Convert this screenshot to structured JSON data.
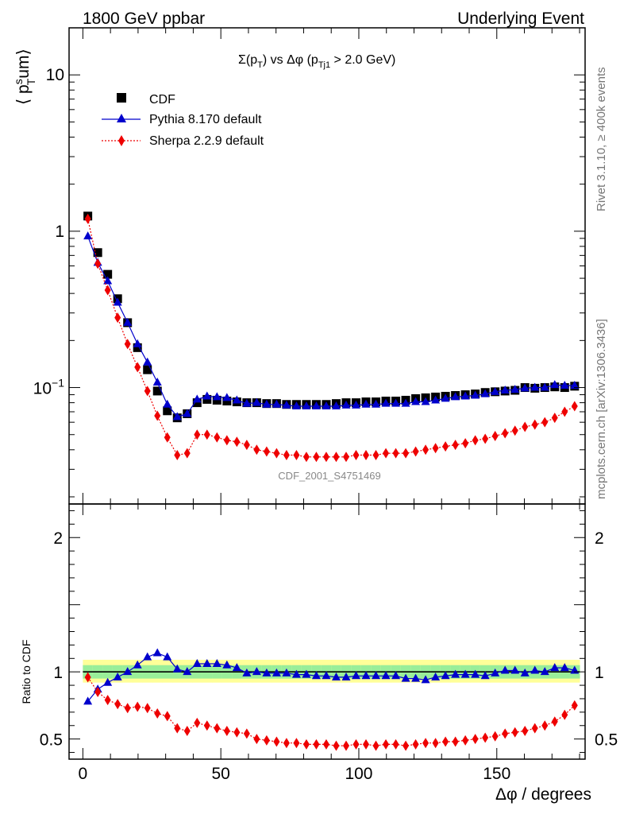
{
  "header": {
    "left_title": "1800 GeV ppbar",
    "right_title": "Underlying Event"
  },
  "plot_title": "Σ(p_T) vs Δφ (p_Tj1 > 2.0 GeV)",
  "watermark": "CDF_2001_S4751469",
  "side_labels": {
    "rivet": "Rivet 3.1.10, ≥ 400k events",
    "mcplots": "mcplots.cern.ch [arXiv:1306.3436]"
  },
  "colors": {
    "cdf": "#000000",
    "pythia": "#0000cc",
    "sherpa": "#ee0000",
    "band_inner": "#99ee99",
    "band_outer": "#ffff99"
  },
  "chart_data": [
    {
      "type": "line",
      "name": "main",
      "ylabel": "⟨ p_T^sum ⟩",
      "yscale": "log",
      "ylim": [
        0.018,
        20
      ],
      "xlim": [
        -5,
        182
      ],
      "yticks": [
        "10^-1",
        "1",
        "10"
      ],
      "legend_position": "top-left",
      "x": [
        1.8,
        5.4,
        9,
        12.6,
        16.2,
        19.8,
        23.4,
        27,
        30.6,
        34.2,
        37.8,
        41.4,
        45,
        48.6,
        52.2,
        55.8,
        59.4,
        63,
        66.6,
        70.2,
        73.8,
        77.4,
        81,
        84.6,
        88.2,
        91.8,
        95.4,
        99,
        102.6,
        106.2,
        109.8,
        113.4,
        117,
        120.6,
        124.2,
        127.8,
        131.4,
        135,
        138.6,
        142.2,
        145.8,
        149.4,
        153,
        156.6,
        160.2,
        163.8,
        167.4,
        171,
        174.6,
        178.2
      ],
      "series": [
        {
          "name": "CDF",
          "marker": "square",
          "values": [
            1.25,
            0.73,
            0.53,
            0.37,
            0.26,
            0.18,
            0.13,
            0.095,
            0.071,
            0.064,
            0.068,
            0.08,
            0.084,
            0.083,
            0.082,
            0.081,
            0.08,
            0.08,
            0.079,
            0.079,
            0.078,
            0.078,
            0.078,
            0.078,
            0.078,
            0.079,
            0.08,
            0.08,
            0.081,
            0.081,
            0.082,
            0.082,
            0.083,
            0.085,
            0.086,
            0.087,
            0.088,
            0.089,
            0.09,
            0.091,
            0.093,
            0.094,
            0.095,
            0.096,
            0.1,
            0.099,
            0.1,
            0.101,
            0.1,
            0.102
          ]
        },
        {
          "name": "Pythia 8.170 default",
          "marker": "triangle",
          "values": [
            0.93,
            0.63,
            0.48,
            0.35,
            0.26,
            0.19,
            0.145,
            0.108,
            0.078,
            0.065,
            0.068,
            0.084,
            0.088,
            0.087,
            0.086,
            0.083,
            0.079,
            0.08,
            0.078,
            0.078,
            0.077,
            0.076,
            0.076,
            0.076,
            0.076,
            0.076,
            0.077,
            0.077,
            0.078,
            0.078,
            0.079,
            0.079,
            0.079,
            0.081,
            0.081,
            0.083,
            0.085,
            0.087,
            0.088,
            0.089,
            0.091,
            0.094,
            0.096,
            0.097,
            0.099,
            0.1,
            0.1,
            0.104,
            0.103,
            0.103
          ]
        },
        {
          "name": "Sherpa 2.2.9 default",
          "marker": "diamond",
          "values": [
            1.2,
            0.62,
            0.42,
            0.28,
            0.19,
            0.135,
            0.095,
            0.066,
            0.048,
            0.037,
            0.038,
            0.05,
            0.05,
            0.048,
            0.046,
            0.045,
            0.043,
            0.04,
            0.039,
            0.038,
            0.037,
            0.037,
            0.036,
            0.036,
            0.036,
            0.036,
            0.036,
            0.037,
            0.037,
            0.037,
            0.038,
            0.038,
            0.038,
            0.039,
            0.04,
            0.041,
            0.042,
            0.043,
            0.044,
            0.046,
            0.047,
            0.049,
            0.051,
            0.053,
            0.056,
            0.058,
            0.06,
            0.064,
            0.07,
            0.076
          ]
        }
      ]
    },
    {
      "type": "line",
      "name": "ratio",
      "ylabel": "Ratio to CDF",
      "xlabel": "Δφ / degrees",
      "ylim": [
        0.35,
        2.25
      ],
      "xlim": [
        -5,
        182
      ],
      "xticks": [
        0,
        50,
        100,
        150
      ],
      "yticks": [
        0.5,
        1,
        2
      ],
      "reference": 1,
      "band_inner": [
        0.95,
        1.05
      ],
      "band_outer": [
        0.92,
        1.09
      ],
      "series": [
        {
          "name": "Pythia 8.170 default",
          "marker": "triangle",
          "values": [
            0.78,
            0.87,
            0.92,
            0.96,
            1.0,
            1.05,
            1.11,
            1.14,
            1.11,
            1.02,
            1.0,
            1.06,
            1.06,
            1.06,
            1.05,
            1.03,
            0.99,
            1.0,
            0.99,
            0.99,
            0.99,
            0.98,
            0.98,
            0.97,
            0.97,
            0.96,
            0.96,
            0.97,
            0.97,
            0.97,
            0.97,
            0.97,
            0.95,
            0.95,
            0.94,
            0.96,
            0.97,
            0.98,
            0.98,
            0.98,
            0.97,
            0.99,
            1.01,
            1.01,
            0.99,
            1.01,
            1.0,
            1.03,
            1.03,
            1.01
          ]
        },
        {
          "name": "Sherpa 2.2.9 default",
          "marker": "diamond",
          "values": [
            0.96,
            0.85,
            0.79,
            0.76,
            0.73,
            0.74,
            0.73,
            0.69,
            0.67,
            0.58,
            0.56,
            0.62,
            0.6,
            0.58,
            0.56,
            0.55,
            0.54,
            0.5,
            0.49,
            0.48,
            0.47,
            0.47,
            0.46,
            0.46,
            0.46,
            0.45,
            0.45,
            0.46,
            0.46,
            0.45,
            0.46,
            0.46,
            0.45,
            0.46,
            0.47,
            0.47,
            0.48,
            0.48,
            0.49,
            0.5,
            0.51,
            0.52,
            0.54,
            0.55,
            0.56,
            0.58,
            0.6,
            0.63,
            0.68,
            0.75
          ]
        }
      ]
    }
  ]
}
